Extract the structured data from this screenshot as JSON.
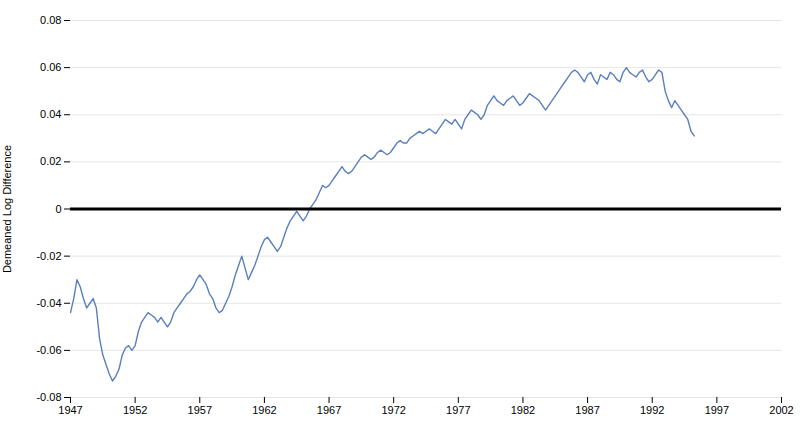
{
  "chart_data": {
    "type": "line",
    "ylabel": "Demeaned Log Difference",
    "color": "#5b7fbc",
    "grid": true,
    "xlim": [
      1947,
      2002
    ],
    "ylim": [
      -0.08,
      0.08
    ],
    "xticks": [
      1947,
      1952,
      1957,
      1962,
      1967,
      1972,
      1977,
      1982,
      1987,
      1992,
      1997,
      2002
    ],
    "yticks": [
      -0.08,
      -0.06,
      -0.04,
      -0.02,
      0,
      0.02,
      0.04,
      0.06,
      0.08
    ],
    "x": [
      1947,
      1947.25,
      1947.5,
      1947.75,
      1948,
      1948.25,
      1948.5,
      1948.75,
      1949,
      1949.25,
      1949.5,
      1949.75,
      1950,
      1950.25,
      1950.5,
      1950.75,
      1951,
      1951.25,
      1951.5,
      1951.75,
      1952,
      1952.25,
      1952.5,
      1952.75,
      1953,
      1953.25,
      1953.5,
      1953.75,
      1954,
      1954.25,
      1954.5,
      1954.75,
      1955,
      1955.25,
      1955.5,
      1955.75,
      1956,
      1956.25,
      1956.5,
      1956.75,
      1957,
      1957.25,
      1957.5,
      1957.75,
      1958,
      1958.25,
      1958.5,
      1958.75,
      1959,
      1959.25,
      1959.5,
      1959.75,
      1960,
      1960.25,
      1960.5,
      1960.75,
      1961,
      1961.25,
      1961.5,
      1961.75,
      1962,
      1962.25,
      1962.5,
      1962.75,
      1963,
      1963.25,
      1963.5,
      1963.75,
      1964,
      1964.25,
      1964.5,
      1964.75,
      1965,
      1965.25,
      1965.5,
      1965.75,
      1966,
      1966.25,
      1966.5,
      1966.75,
      1967,
      1967.25,
      1967.5,
      1967.75,
      1968,
      1968.25,
      1968.5,
      1968.75,
      1969,
      1969.25,
      1969.5,
      1969.75,
      1970,
      1970.25,
      1970.5,
      1970.75,
      1971,
      1971.25,
      1971.5,
      1971.75,
      1972,
      1972.25,
      1972.5,
      1972.75,
      1973,
      1973.25,
      1973.5,
      1973.75,
      1974,
      1974.25,
      1974.5,
      1974.75,
      1975,
      1975.25,
      1975.5,
      1975.75,
      1976,
      1976.25,
      1976.5,
      1976.75,
      1977,
      1977.25,
      1977.5,
      1977.75,
      1978,
      1978.25,
      1978.5,
      1978.75,
      1979,
      1979.25,
      1979.5,
      1979.75,
      1980,
      1980.25,
      1980.5,
      1980.75,
      1981,
      1981.25,
      1981.5,
      1981.75,
      1982,
      1982.25,
      1982.5,
      1982.75,
      1983,
      1983.25,
      1983.5,
      1983.75,
      1984,
      1984.25,
      1984.5,
      1984.75,
      1985,
      1985.25,
      1985.5,
      1985.75,
      1986,
      1986.25,
      1986.5,
      1986.75,
      1987,
      1987.25,
      1987.5,
      1987.75,
      1988,
      1988.25,
      1988.5,
      1988.75,
      1989,
      1989.25,
      1989.5,
      1989.75,
      1990,
      1990.25,
      1990.5,
      1990.75,
      1991,
      1991.25,
      1991.5,
      1991.75,
      1992,
      1992.25,
      1992.5,
      1992.75,
      1993,
      1993.25,
      1993.5,
      1993.75,
      1994,
      1994.25,
      1994.5,
      1994.75,
      1995,
      1995.25
    ],
    "values": [
      -0.044,
      -0.038,
      -0.03,
      -0.033,
      -0.038,
      -0.042,
      -0.04,
      -0.038,
      -0.042,
      -0.055,
      -0.062,
      -0.066,
      -0.07,
      -0.073,
      -0.071,
      -0.068,
      -0.062,
      -0.059,
      -0.058,
      -0.06,
      -0.058,
      -0.052,
      -0.048,
      -0.046,
      -0.044,
      -0.045,
      -0.046,
      -0.048,
      -0.046,
      -0.048,
      -0.05,
      -0.048,
      -0.044,
      -0.042,
      -0.04,
      -0.038,
      -0.036,
      -0.035,
      -0.033,
      -0.03,
      -0.028,
      -0.03,
      -0.032,
      -0.036,
      -0.038,
      -0.042,
      -0.044,
      -0.043,
      -0.04,
      -0.037,
      -0.033,
      -0.028,
      -0.024,
      -0.02,
      -0.025,
      -0.03,
      -0.027,
      -0.024,
      -0.02,
      -0.016,
      -0.013,
      -0.012,
      -0.014,
      -0.016,
      -0.018,
      -0.016,
      -0.012,
      -0.008,
      -0.005,
      -0.003,
      -0.001,
      -0.003,
      -0.005,
      -0.003,
      0.0,
      0.002,
      0.004,
      0.007,
      0.01,
      0.009,
      0.01,
      0.012,
      0.014,
      0.016,
      0.018,
      0.016,
      0.015,
      0.016,
      0.018,
      0.02,
      0.022,
      0.023,
      0.022,
      0.021,
      0.022,
      0.024,
      0.025,
      0.024,
      0.023,
      0.024,
      0.026,
      0.028,
      0.029,
      0.028,
      0.028,
      0.03,
      0.031,
      0.032,
      0.033,
      0.032,
      0.033,
      0.034,
      0.033,
      0.032,
      0.034,
      0.036,
      0.038,
      0.037,
      0.036,
      0.038,
      0.036,
      0.034,
      0.038,
      0.04,
      0.042,
      0.041,
      0.04,
      0.038,
      0.04,
      0.044,
      0.046,
      0.048,
      0.046,
      0.045,
      0.044,
      0.046,
      0.047,
      0.048,
      0.046,
      0.044,
      0.045,
      0.047,
      0.049,
      0.048,
      0.047,
      0.046,
      0.044,
      0.042,
      0.044,
      0.046,
      0.048,
      0.05,
      0.052,
      0.054,
      0.056,
      0.058,
      0.059,
      0.058,
      0.056,
      0.054,
      0.057,
      0.058,
      0.055,
      0.053,
      0.057,
      0.056,
      0.055,
      0.058,
      0.057,
      0.055,
      0.054,
      0.058,
      0.06,
      0.058,
      0.057,
      0.056,
      0.058,
      0.059,
      0.056,
      0.054,
      0.055,
      0.057,
      0.059,
      0.058,
      0.05,
      0.046,
      0.043,
      0.046,
      0.044,
      0.042,
      0.04,
      0.038,
      0.033,
      0.031
    ]
  }
}
